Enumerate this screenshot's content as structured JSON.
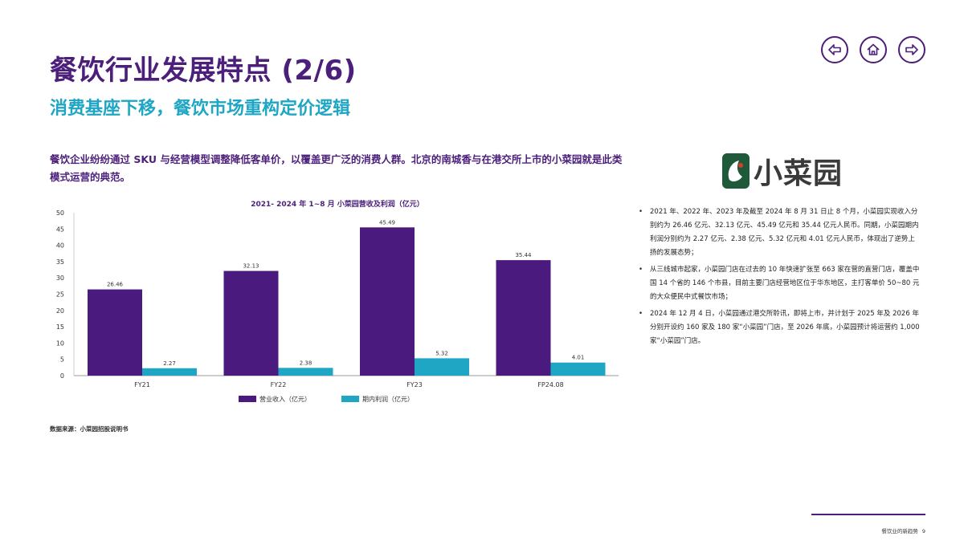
{
  "header": {
    "title": "餐饮行业发展特点 (2/6)",
    "subtitle": "消费基座下移，餐饮市场重构定价逻辑"
  },
  "nav": {
    "prev_icon": "arrow-left-icon",
    "home_icon": "home-icon",
    "next_icon": "arrow-right-icon"
  },
  "intro": "餐饮企业纷纷通过 SKU 与经营模型调整降低客单价，以覆盖更广泛的消费人群。北京的南城香与在港交所上市的小菜园就是此类模式运营的典范。",
  "chart_data": {
    "type": "bar",
    "title": "2021- 2024 年 1~8 月 小菜园营收及利润（亿元）",
    "categories": [
      "FY21",
      "FY22",
      "FY23",
      "FP24.08"
    ],
    "series": [
      {
        "name": "营业收入（亿元）",
        "values": [
          26.46,
          32.13,
          45.49,
          35.44
        ],
        "labels": [
          "26.46",
          "32.13",
          "45.49",
          "35.44"
        ],
        "color": "#4b1a7e"
      },
      {
        "name": "期内利润（亿元）",
        "values": [
          2.27,
          2.38,
          5.32,
          4.01
        ],
        "labels": [
          "2.27",
          "2.38",
          "5.32",
          "4.01"
        ],
        "color": "#1fa6c4"
      }
    ],
    "yticks": [
      "0",
      "5",
      "10",
      "15",
      "20",
      "25",
      "30",
      "35",
      "40",
      "45",
      "50"
    ],
    "ylim": [
      0,
      50
    ],
    "grid": false,
    "legend": "bottom"
  },
  "source": "数据来源：小菜园招股说明书",
  "logo": {
    "text": "小菜园",
    "icon": "xiaocaiyuan-logo-icon"
  },
  "bullets": [
    "2021 年、2022 年、2023 年及截至 2024 年 8 月 31 日止 8 个月，小菜园实现收入分别约为 26.46 亿元、32.13 亿元、45.49 亿元和 35.44 亿元人民币。同期，小菜园期内利润分别约为 2.27 亿元、2.38 亿元、5.32 亿元和 4.01 亿元人民币，体现出了逆势上扬的发展态势；",
    "从三线城市起家，小菜园门店在过去的 10 年快速扩张至 663 家在营的直营门店，覆盖中国 14 个省的 146 个市县，目前主要门店经营地区位于华东地区，主打客单价 50~80 元的大众便民中式餐饮市场；",
    "2024 年 12 月 4 日，小菜园通过港交所聆讯，即将上市，并计划于 2025 年及 2026 年分别开设约 160 家及 180 家“小菜园”门店，至 2026 年底，小菜园预计将运营约 1,000 家“小菜园”门店。"
  ],
  "footer": {
    "label": "餐饮业的新趋势",
    "page": "9"
  }
}
